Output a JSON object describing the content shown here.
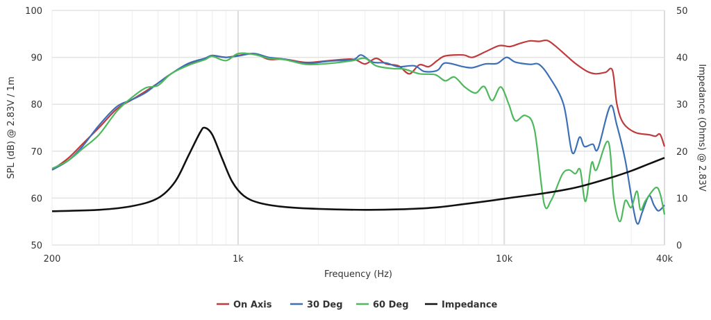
{
  "chart_data": {
    "type": "line",
    "title": "",
    "xlabel": "Frequency (Hz)",
    "ylabel": "SPL (dB) @ 2.83V / 1m",
    "y2label": "Impedance (Ohms) @ 2.83V",
    "xscale": "log",
    "xlim": [
      200,
      40000
    ],
    "ylim": [
      50,
      100
    ],
    "y2lim": [
      0,
      50
    ],
    "grid": true,
    "legend_position": "bottom-center",
    "x_ticks": [
      {
        "v": 200,
        "label": "200"
      },
      {
        "v": 1000,
        "label": "1k"
      },
      {
        "v": 10000,
        "label": "10k"
      },
      {
        "v": 40000,
        "label": "40k"
      }
    ],
    "y_ticks": [
      50,
      60,
      70,
      80,
      90,
      100
    ],
    "y2_ticks": [
      0,
      10,
      20,
      30,
      40,
      50
    ],
    "series": [
      {
        "name": "On Axis",
        "axis": "left",
        "color": "#c0393b",
        "points": [
          [
            200,
            66
          ],
          [
            230,
            68.5
          ],
          [
            260,
            71.5
          ],
          [
            300,
            75
          ],
          [
            350,
            79
          ],
          [
            400,
            81
          ],
          [
            450,
            82.8
          ],
          [
            500,
            84.5
          ],
          [
            560,
            86.5
          ],
          [
            650,
            88.5
          ],
          [
            750,
            89.6
          ],
          [
            800,
            90.3
          ],
          [
            900,
            90
          ],
          [
            1000,
            90.4
          ],
          [
            1150,
            90.8
          ],
          [
            1300,
            89.6
          ],
          [
            1500,
            89.6
          ],
          [
            1800,
            88.9
          ],
          [
            2200,
            89.3
          ],
          [
            2700,
            89.6
          ],
          [
            3000,
            88.6
          ],
          [
            3300,
            89.8
          ],
          [
            3600,
            88.6
          ],
          [
            4000,
            88.2
          ],
          [
            4400,
            86.5
          ],
          [
            4800,
            88.4
          ],
          [
            5200,
            88.0
          ],
          [
            5600,
            89.3
          ],
          [
            6000,
            90.3
          ],
          [
            7000,
            90.5
          ],
          [
            7600,
            90.0
          ],
          [
            8500,
            91.2
          ],
          [
            9600,
            92.5
          ],
          [
            10500,
            92.3
          ],
          [
            11500,
            93.0
          ],
          [
            12500,
            93.5
          ],
          [
            13500,
            93.4
          ],
          [
            14500,
            93.6
          ],
          [
            15500,
            92.5
          ],
          [
            17000,
            90.5
          ],
          [
            18500,
            88.7
          ],
          [
            20500,
            87.0
          ],
          [
            22000,
            86.5
          ],
          [
            24000,
            86.8
          ],
          [
            25500,
            87.2
          ],
          [
            26500,
            80.0
          ],
          [
            28000,
            76.0
          ],
          [
            31000,
            74.0
          ],
          [
            35000,
            73.5
          ],
          [
            37000,
            73.2
          ],
          [
            38500,
            73.6
          ],
          [
            40000,
            71
          ]
        ]
      },
      {
        "name": "30 Deg",
        "axis": "left",
        "color": "#3b6fb6",
        "points": [
          [
            200,
            66
          ],
          [
            230,
            68
          ],
          [
            260,
            71
          ],
          [
            300,
            75.5
          ],
          [
            350,
            79.5
          ],
          [
            400,
            81
          ],
          [
            450,
            82.5
          ],
          [
            500,
            84.5
          ],
          [
            560,
            86.5
          ],
          [
            650,
            88.7
          ],
          [
            750,
            89.8
          ],
          [
            800,
            90.4
          ],
          [
            900,
            90.0
          ],
          [
            1000,
            90.3
          ],
          [
            1150,
            90.8
          ],
          [
            1300,
            90.0
          ],
          [
            1500,
            89.6
          ],
          [
            1800,
            88.7
          ],
          [
            2200,
            89.2
          ],
          [
            2700,
            89.5
          ],
          [
            2900,
            90.5
          ],
          [
            3200,
            89.0
          ],
          [
            3600,
            88.8
          ],
          [
            4000,
            88.0
          ],
          [
            4600,
            88.2
          ],
          [
            5000,
            87.0
          ],
          [
            5600,
            87.2
          ],
          [
            6000,
            88.8
          ],
          [
            7000,
            88.0
          ],
          [
            7600,
            87.8
          ],
          [
            8500,
            88.6
          ],
          [
            9400,
            88.7
          ],
          [
            10200,
            90.0
          ],
          [
            11000,
            89.0
          ],
          [
            12500,
            88.5
          ],
          [
            13500,
            88.5
          ],
          [
            14700,
            86.0
          ],
          [
            16700,
            80.0
          ],
          [
            18000,
            69.7
          ],
          [
            19200,
            73.0
          ],
          [
            20000,
            71.0
          ],
          [
            21500,
            71.5
          ],
          [
            22500,
            70.5
          ],
          [
            25000,
            79.6
          ],
          [
            26500,
            75.5
          ],
          [
            28500,
            68
          ],
          [
            30500,
            58
          ],
          [
            31700,
            54.5
          ],
          [
            33000,
            57
          ],
          [
            35000,
            60.5
          ],
          [
            36500,
            58.5
          ],
          [
            38000,
            57.3
          ],
          [
            40000,
            58.5
          ]
        ]
      },
      {
        "name": "60 Deg",
        "axis": "left",
        "color": "#4db85c",
        "points": [
          [
            200,
            66.3
          ],
          [
            230,
            68
          ],
          [
            260,
            70.5
          ],
          [
            300,
            73.5
          ],
          [
            350,
            78.5
          ],
          [
            400,
            81.5
          ],
          [
            450,
            83.5
          ],
          [
            500,
            84
          ],
          [
            560,
            86.5
          ],
          [
            650,
            88.3
          ],
          [
            750,
            89.5
          ],
          [
            800,
            90.2
          ],
          [
            900,
            89.3
          ],
          [
            1000,
            90.8
          ],
          [
            1150,
            90.6
          ],
          [
            1300,
            89.8
          ],
          [
            1500,
            89.5
          ],
          [
            1800,
            88.5
          ],
          [
            2200,
            88.7
          ],
          [
            2700,
            89.3
          ],
          [
            3000,
            89.8
          ],
          [
            3300,
            88.2
          ],
          [
            3800,
            87.6
          ],
          [
            4200,
            87.5
          ],
          [
            4800,
            86.5
          ],
          [
            5500,
            86.3
          ],
          [
            6000,
            85.0
          ],
          [
            6500,
            85.8
          ],
          [
            7100,
            83.7
          ],
          [
            7800,
            82.4
          ],
          [
            8400,
            83.8
          ],
          [
            9000,
            80.8
          ],
          [
            9700,
            83.7
          ],
          [
            10400,
            80.0
          ],
          [
            11000,
            76.5
          ],
          [
            12000,
            77.6
          ],
          [
            13000,
            74.5
          ],
          [
            14100,
            59.0
          ],
          [
            15000,
            59.5
          ],
          [
            16500,
            65.0
          ],
          [
            17500,
            66.0
          ],
          [
            18500,
            65.2
          ],
          [
            19300,
            66.0
          ],
          [
            20200,
            59.3
          ],
          [
            21300,
            67.5
          ],
          [
            22200,
            66.0
          ],
          [
            24600,
            72.0
          ],
          [
            25800,
            60.0
          ],
          [
            27200,
            55.0
          ],
          [
            28500,
            59.5
          ],
          [
            30000,
            58.0
          ],
          [
            31500,
            61.5
          ],
          [
            32500,
            57.5
          ],
          [
            34000,
            59.5
          ],
          [
            37000,
            62.2
          ],
          [
            38500,
            61.0
          ],
          [
            40000,
            56.5
          ]
        ]
      },
      {
        "name": "Impedance",
        "axis": "right",
        "color": "#111111",
        "points": [
          [
            200,
            7.2
          ],
          [
            300,
            7.5
          ],
          [
            400,
            8.3
          ],
          [
            500,
            10.0
          ],
          [
            580,
            13.5
          ],
          [
            650,
            19.0
          ],
          [
            720,
            24.0
          ],
          [
            750,
            25.0
          ],
          [
            800,
            23.5
          ],
          [
            870,
            18.5
          ],
          [
            950,
            13.5
          ],
          [
            1050,
            10.5
          ],
          [
            1200,
            9.0
          ],
          [
            1500,
            8.1
          ],
          [
            2000,
            7.7
          ],
          [
            3000,
            7.5
          ],
          [
            4000,
            7.6
          ],
          [
            5500,
            8.0
          ],
          [
            7000,
            8.7
          ],
          [
            9000,
            9.5
          ],
          [
            11000,
            10.2
          ],
          [
            14000,
            11.0
          ],
          [
            17000,
            11.8
          ],
          [
            20000,
            12.7
          ],
          [
            25000,
            14.3
          ],
          [
            30000,
            15.8
          ],
          [
            35000,
            17.3
          ],
          [
            40000,
            18.6
          ]
        ]
      }
    ]
  }
}
